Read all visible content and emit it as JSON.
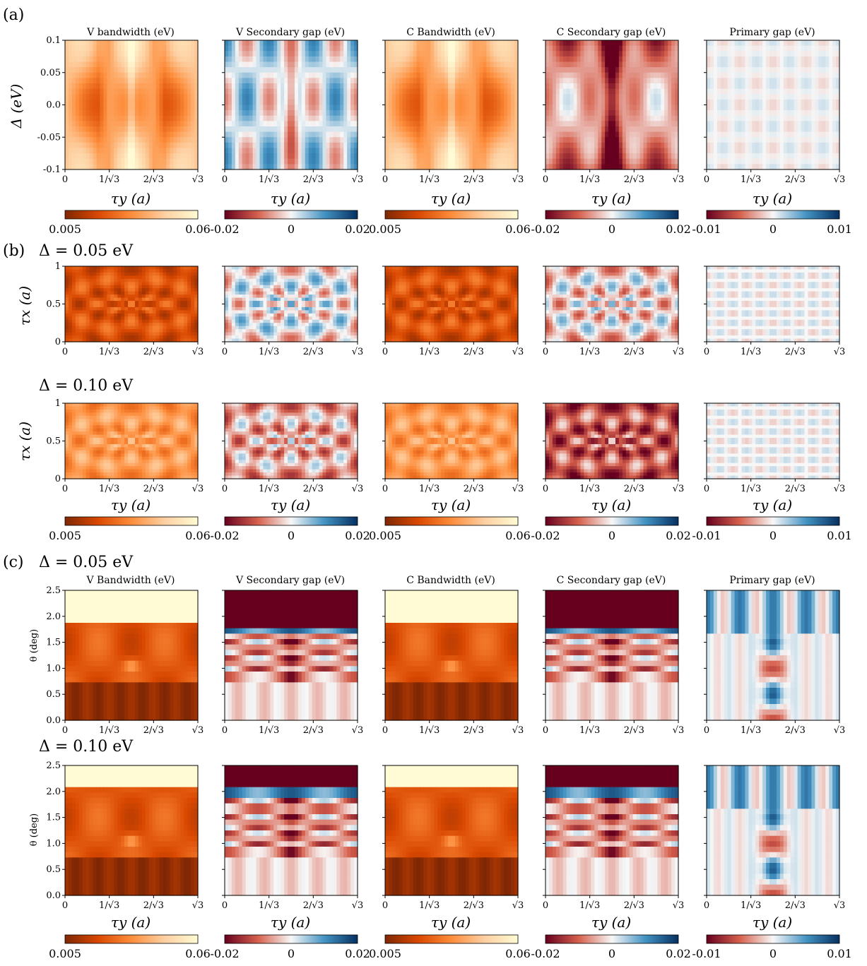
{
  "panel_labels": {
    "a": "(a)",
    "b": "(b)",
    "c": "(c)"
  },
  "section_titles": {
    "b_top": "Δ = 0.05 eV",
    "b_bottom": "Δ = 0.10 eV",
    "c_top": "Δ = 0.05 eV",
    "c_bottom": "Δ = 0.10 eV"
  },
  "column_titles": {
    "a": [
      "V bandwidth (eV)",
      "V Secondary gap (eV)",
      "C Bandwidth (eV)",
      "C Secondary gap (eV)",
      "Primary gap (eV)"
    ],
    "c": [
      "V Bandwidth (eV)",
      "V Secondary gap (eV)",
      "C Bandwidth (eV)",
      "C Secondary gap (eV)",
      "Primary gap (eV)"
    ]
  },
  "axis_labels": {
    "x": "τy (a)",
    "y_a": "Δ (eV)",
    "y_b": "τx (a)",
    "y_c": "θ (deg)"
  },
  "colors": {
    "orange_cmap": [
      "#7f2704",
      "#d94801",
      "#fd8d3c",
      "#fdd0a2",
      "#fffbd4"
    ],
    "rdbu_cmap": [
      "#67001f",
      "#d6604d",
      "#f7f7f7",
      "#4393c3",
      "#053061"
    ]
  },
  "chart_data": [
    {
      "type": "heatmap",
      "panel": "(a)",
      "x_ticks": [
        "0",
        "1/√3",
        "2/√3",
        "√3"
      ],
      "xlabel": "τy (a)",
      "ylabel": "Δ (eV)",
      "y_ticks": [
        "-0.1",
        "-0.05",
        "0.0",
        "0.05",
        "0.1"
      ],
      "ylim": [
        -0.1,
        0.1
      ],
      "maps": [
        {
          "title": "V bandwidth (eV)",
          "cmap": "orange",
          "clim": [
            0.005,
            0.06
          ],
          "colorbar_ticks": [
            "0.005",
            "0.06"
          ]
        },
        {
          "title": "V Secondary gap (eV)",
          "cmap": "rdbu",
          "clim": [
            -0.02,
            0.02
          ],
          "colorbar_ticks": [
            "-0.02",
            "0",
            "0.02"
          ]
        },
        {
          "title": "C Bandwidth (eV)",
          "cmap": "orange",
          "clim": [
            0.005,
            0.06
          ],
          "colorbar_ticks": [
            "0.005",
            "0.06"
          ]
        },
        {
          "title": "C Secondary gap (eV)",
          "cmap": "rdbu",
          "clim": [
            -0.02,
            0.02
          ],
          "colorbar_ticks": [
            "-0.02",
            "0",
            "0.02"
          ]
        },
        {
          "title": "Primary gap (eV)",
          "cmap": "rdbu",
          "clim": [
            -0.01,
            0.01
          ],
          "colorbar_ticks": [
            "-0.01",
            "0",
            "0.01"
          ]
        }
      ]
    },
    {
      "type": "heatmap",
      "panel": "(b)",
      "x_ticks": [
        "0",
        "1/√3",
        "2/√3",
        "√3"
      ],
      "xlabel": "τy (a)",
      "ylabel": "τx (a)",
      "y_ticks": [
        "0",
        "0.5",
        "1"
      ],
      "ylim": [
        0,
        1
      ],
      "rows": [
        "Δ = 0.05 eV",
        "Δ = 0.10 eV"
      ],
      "colorbars": [
        {
          "clim": [
            0.005,
            0.06
          ],
          "ticks": [
            "0.005",
            "0.06"
          ]
        },
        {
          "clim": [
            -0.02,
            0.02
          ],
          "ticks": [
            "-0.02",
            "0",
            "0.02"
          ]
        },
        {
          "clim": [
            0.005,
            0.06
          ],
          "ticks": [
            "0.005",
            "0.06"
          ]
        },
        {
          "clim": [
            -0.02,
            0.02
          ],
          "ticks": [
            "-0.02",
            "0",
            "0.02"
          ]
        },
        {
          "clim": [
            -0.01,
            0.01
          ],
          "ticks": [
            "-0.01",
            "0",
            "0.01"
          ]
        }
      ]
    },
    {
      "type": "heatmap",
      "panel": "(c)",
      "x_ticks": [
        "0",
        "1/√3",
        "2/√3",
        "√3"
      ],
      "xlabel": "τy (a)",
      "ylabel": "θ (deg)",
      "y_ticks": [
        "0.0",
        "0.5",
        "1.0",
        "1.5",
        "2.0",
        "2.5"
      ],
      "ylim": [
        0,
        2.5
      ],
      "rows": [
        "Δ = 0.05 eV",
        "Δ = 0.10 eV"
      ],
      "colorbars": [
        {
          "clim": [
            0.005,
            0.06
          ],
          "ticks": [
            "0.005",
            "0.06"
          ]
        },
        {
          "clim": [
            -0.02,
            0.02
          ],
          "ticks": [
            "-0.02",
            "0",
            "0.02"
          ]
        },
        {
          "clim": [
            0.005,
            0.06
          ],
          "ticks": [
            "0.005",
            "0.06"
          ]
        },
        {
          "clim": [
            -0.02,
            0.02
          ],
          "ticks": [
            "-0.02",
            "0",
            "0.02"
          ]
        },
        {
          "clim": [
            -0.01,
            0.01
          ],
          "ticks": [
            "-0.01",
            "0",
            "0.01"
          ]
        }
      ]
    }
  ]
}
